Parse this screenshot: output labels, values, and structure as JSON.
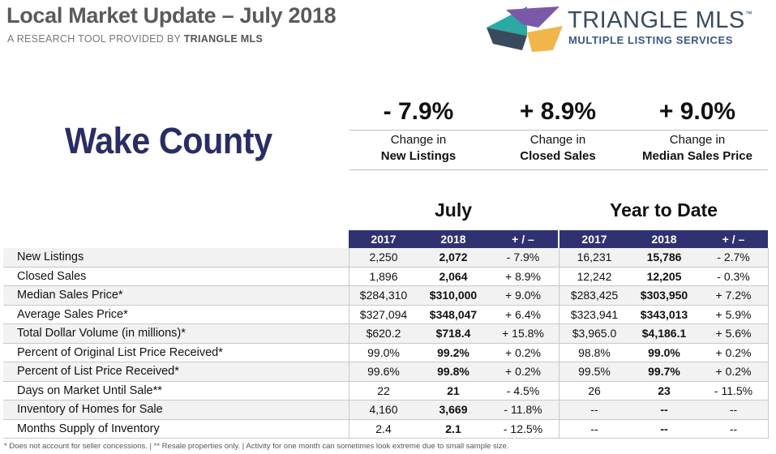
{
  "header": {
    "title": "Local Market Update – July 2018",
    "subtitle_prefix": "A RESEARCH TOOL PROVIDED BY ",
    "subtitle_brand": "TRIANGLE MLS"
  },
  "logo": {
    "name": "TRIANGLE MLS",
    "trademark": "™",
    "tagline": "MULTIPLE LISTING SERVICES",
    "colors": [
      "#2aa9a5",
      "#7a5aa8",
      "#f0b64a",
      "#3a4a5e"
    ]
  },
  "county": "Wake County",
  "kpis": [
    {
      "value": "- 7.9%",
      "line1": "Change in",
      "line2": "New Listings"
    },
    {
      "value": "+ 8.9%",
      "line1": "Change in",
      "line2": "Closed Sales"
    },
    {
      "value": "+ 9.0%",
      "line1": "Change in",
      "line2": "Median Sales Price"
    }
  ],
  "sections": {
    "month": "July",
    "ytd": "Year to Date"
  },
  "columns": [
    "2017",
    "2018",
    "+ / –",
    "2017",
    "2018",
    "+ / –"
  ],
  "rows": [
    {
      "metric": "New Listings",
      "m2017": "2,250",
      "m2018": "2,072",
      "mchg": "- 7.9%",
      "y2017": "16,231",
      "y2018": "15,786",
      "ychg": "- 2.7%"
    },
    {
      "metric": "Closed Sales",
      "m2017": "1,896",
      "m2018": "2,064",
      "mchg": "+ 8.9%",
      "y2017": "12,242",
      "y2018": "12,205",
      "ychg": "- 0.3%"
    },
    {
      "metric": "Median Sales Price*",
      "m2017": "$284,310",
      "m2018": "$310,000",
      "mchg": "+ 9.0%",
      "y2017": "$283,425",
      "y2018": "$303,950",
      "ychg": "+ 7.2%"
    },
    {
      "metric": "Average Sales Price*",
      "m2017": "$327,094",
      "m2018": "$348,047",
      "mchg": "+ 6.4%",
      "y2017": "$323,941",
      "y2018": "$343,013",
      "ychg": "+ 5.9%"
    },
    {
      "metric": "Total Dollar Volume (in millions)*",
      "m2017": "$620.2",
      "m2018": "$718.4",
      "mchg": "+ 15.8%",
      "y2017": "$3,965.0",
      "y2018": "$4,186.1",
      "ychg": "+ 5.6%"
    },
    {
      "metric": "Percent of Original List Price Received*",
      "m2017": "99.0%",
      "m2018": "99.2%",
      "mchg": "+ 0.2%",
      "y2017": "98.8%",
      "y2018": "99.0%",
      "ychg": "+ 0.2%"
    },
    {
      "metric": "Percent of List Price Received*",
      "m2017": "99.6%",
      "m2018": "99.8%",
      "mchg": "+ 0.2%",
      "y2017": "99.5%",
      "y2018": "99.7%",
      "ychg": "+ 0.2%"
    },
    {
      "metric": "Days on Market Until Sale**",
      "m2017": "22",
      "m2018": "21",
      "mchg": "- 4.5%",
      "y2017": "26",
      "y2018": "23",
      "ychg": "- 11.5%"
    },
    {
      "metric": "Inventory of Homes for Sale",
      "m2017": "4,160",
      "m2018": "3,669",
      "mchg": "- 11.8%",
      "y2017": "--",
      "y2018": "--",
      "ychg": "--"
    },
    {
      "metric": "Months Supply of Inventory",
      "m2017": "2.4",
      "m2018": "2.1",
      "mchg": "- 12.5%",
      "y2017": "--",
      "y2018": "--",
      "ychg": "--"
    }
  ],
  "footnote": "* Does not account for seller concessions.  |  ** Resale properties only.  |  Activity for one month can sometimes look extreme due to small sample size."
}
